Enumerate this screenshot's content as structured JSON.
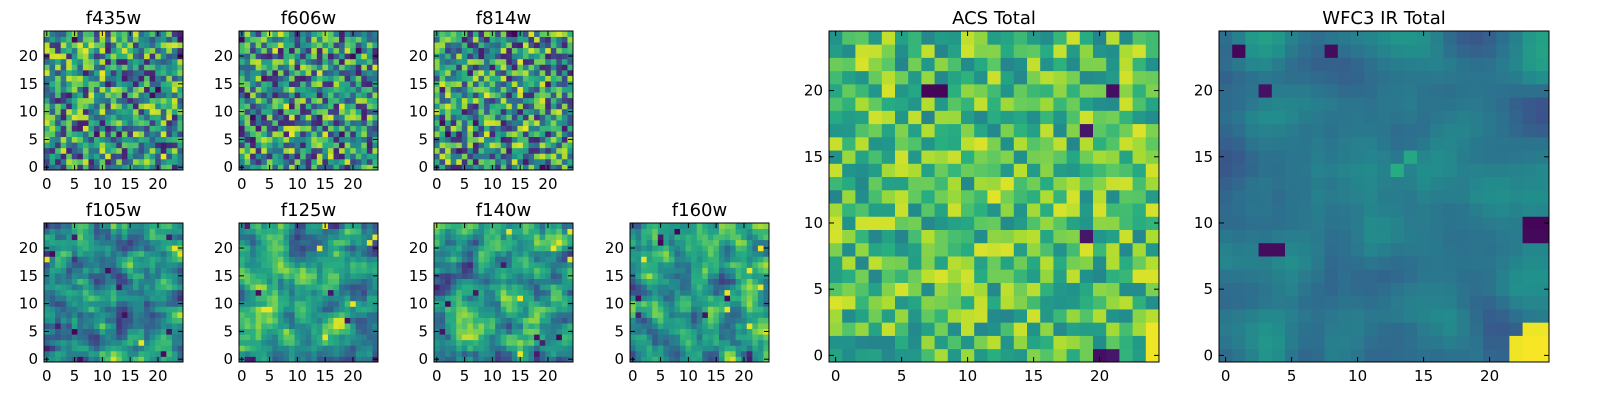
{
  "chart_data": [
    {
      "type": "heatmap",
      "title": "f435w",
      "grid_size": [
        25,
        25
      ],
      "xlim": [
        0,
        25
      ],
      "ylim": [
        0,
        25
      ],
      "xticks": [
        "0",
        "5",
        "10",
        "15",
        "20"
      ],
      "yticks": [
        "0",
        "5",
        "10",
        "15",
        "20"
      ],
      "colormap": "viridis",
      "seed": 11,
      "smooth": 0,
      "hotspots": []
    },
    {
      "type": "heatmap",
      "title": "f606w",
      "grid_size": [
        25,
        25
      ],
      "xlim": [
        0,
        25
      ],
      "ylim": [
        0,
        25
      ],
      "xticks": [
        "0",
        "5",
        "10",
        "15",
        "20"
      ],
      "yticks": [
        "0",
        "5",
        "10",
        "15",
        "20"
      ],
      "colormap": "viridis",
      "seed": 23,
      "smooth": 0,
      "hotspots": []
    },
    {
      "type": "heatmap",
      "title": "f814w",
      "grid_size": [
        25,
        25
      ],
      "xlim": [
        0,
        25
      ],
      "ylim": [
        0,
        25
      ],
      "xticks": [
        "0",
        "5",
        "10",
        "15",
        "20"
      ],
      "yticks": [
        "0",
        "5",
        "10",
        "15",
        "20"
      ],
      "colormap": "viridis",
      "seed": 37,
      "smooth": 0,
      "hotspots": []
    },
    {
      "type": "heatmap",
      "title": "f105w",
      "grid_size": [
        25,
        25
      ],
      "xlim": [
        0,
        25
      ],
      "ylim": [
        0,
        25
      ],
      "xticks": [
        "0",
        "5",
        "10",
        "15",
        "20"
      ],
      "yticks": [
        "0",
        "5",
        "10",
        "15",
        "20"
      ],
      "colormap": "viridis",
      "seed": 41,
      "smooth": 1,
      "hotspots": []
    },
    {
      "type": "heatmap",
      "title": "f125w",
      "grid_size": [
        25,
        25
      ],
      "xlim": [
        0,
        25
      ],
      "ylim": [
        0,
        25
      ],
      "xticks": [
        "0",
        "5",
        "10",
        "15",
        "20"
      ],
      "yticks": [
        "0",
        "5",
        "10",
        "15",
        "20"
      ],
      "colormap": "viridis",
      "seed": 53,
      "smooth": 1,
      "hotspots": []
    },
    {
      "type": "heatmap",
      "title": "f140w",
      "grid_size": [
        25,
        25
      ],
      "xlim": [
        0,
        25
      ],
      "ylim": [
        0,
        25
      ],
      "xticks": [
        "0",
        "5",
        "10",
        "15",
        "20"
      ],
      "yticks": [
        "0",
        "5",
        "10",
        "15",
        "20"
      ],
      "colormap": "viridis",
      "seed": 67,
      "smooth": 1,
      "hotspots": []
    },
    {
      "type": "heatmap",
      "title": "f160w",
      "grid_size": [
        25,
        25
      ],
      "xlim": [
        0,
        25
      ],
      "ylim": [
        0,
        25
      ],
      "xticks": [
        "0",
        "5",
        "10",
        "15",
        "20"
      ],
      "yticks": [
        "0",
        "5",
        "10",
        "15",
        "20"
      ],
      "colormap": "viridis",
      "seed": 79,
      "smooth": 1,
      "hotspots": []
    },
    {
      "type": "heatmap",
      "title": "ACS Total",
      "grid_size": [
        25,
        25
      ],
      "xlim": [
        0,
        25
      ],
      "ylim": [
        0,
        25
      ],
      "xticks": [
        "0",
        "5",
        "10",
        "15",
        "20"
      ],
      "yticks": [
        "0",
        "5",
        "10",
        "15",
        "20"
      ],
      "colormap": "viridis",
      "seed": 97,
      "smooth": 0,
      "value_range": [
        0.45,
        0.95
      ],
      "hotspots": [
        {
          "cell": [
            0,
            20
          ],
          "value": 0.05
        },
        {
          "cell": [
            0,
            21
          ],
          "value": 0.08
        },
        {
          "cell": [
            20,
            7
          ],
          "value": 0.02
        },
        {
          "cell": [
            20,
            8
          ],
          "value": 0.02
        },
        {
          "cell": [
            20,
            21
          ],
          "value": 0.05
        },
        {
          "cell": [
            17,
            19
          ],
          "value": 0.08
        },
        {
          "cell": [
            9,
            19
          ],
          "value": 0.08
        },
        {
          "cell": [
            2,
            24
          ],
          "value": 0.98
        },
        {
          "cell": [
            1,
            24
          ],
          "value": 0.98
        },
        {
          "cell": [
            0,
            24
          ],
          "value": 0.98
        },
        {
          "cell": [
            12,
            12
          ],
          "value": 0.96
        },
        {
          "cell": [
            13,
            13
          ],
          "value": 0.95
        }
      ]
    },
    {
      "type": "heatmap",
      "title": "WFC3 IR Total",
      "grid_size": [
        25,
        25
      ],
      "xlim": [
        0,
        25
      ],
      "ylim": [
        0,
        25
      ],
      "xticks": [
        "0",
        "5",
        "10",
        "15",
        "20"
      ],
      "yticks": [
        "0",
        "5",
        "10",
        "15",
        "20"
      ],
      "colormap": "viridis",
      "seed": 113,
      "smooth": 2,
      "value_range": [
        0.25,
        0.58
      ],
      "hotspots": [
        {
          "cell": [
            23,
            1
          ],
          "value": 0.02
        },
        {
          "cell": [
            23,
            8
          ],
          "value": 0.04
        },
        {
          "cell": [
            8,
            3
          ],
          "value": 0.04
        },
        {
          "cell": [
            8,
            4
          ],
          "value": 0.04
        },
        {
          "cell": [
            10,
            23
          ],
          "value": 0.02
        },
        {
          "cell": [
            10,
            24
          ],
          "value": 0.02
        },
        {
          "cell": [
            9,
            23
          ],
          "value": 0.03
        },
        {
          "cell": [
            9,
            24
          ],
          "value": 0.03
        },
        {
          "cell": [
            20,
            3
          ],
          "value": 0.06
        },
        {
          "cell": [
            2,
            23
          ],
          "value": 0.98
        },
        {
          "cell": [
            2,
            24
          ],
          "value": 0.98
        },
        {
          "cell": [
            1,
            22
          ],
          "value": 0.98
        },
        {
          "cell": [
            1,
            23
          ],
          "value": 0.99
        },
        {
          "cell": [
            1,
            24
          ],
          "value": 0.99
        },
        {
          "cell": [
            0,
            22
          ],
          "value": 0.98
        },
        {
          "cell": [
            0,
            23
          ],
          "value": 0.99
        },
        {
          "cell": [
            0,
            24
          ],
          "value": 0.99
        },
        {
          "cell": [
            14,
            13
          ],
          "value": 0.62
        },
        {
          "cell": [
            15,
            14
          ],
          "value": 0.6
        }
      ]
    }
  ]
}
